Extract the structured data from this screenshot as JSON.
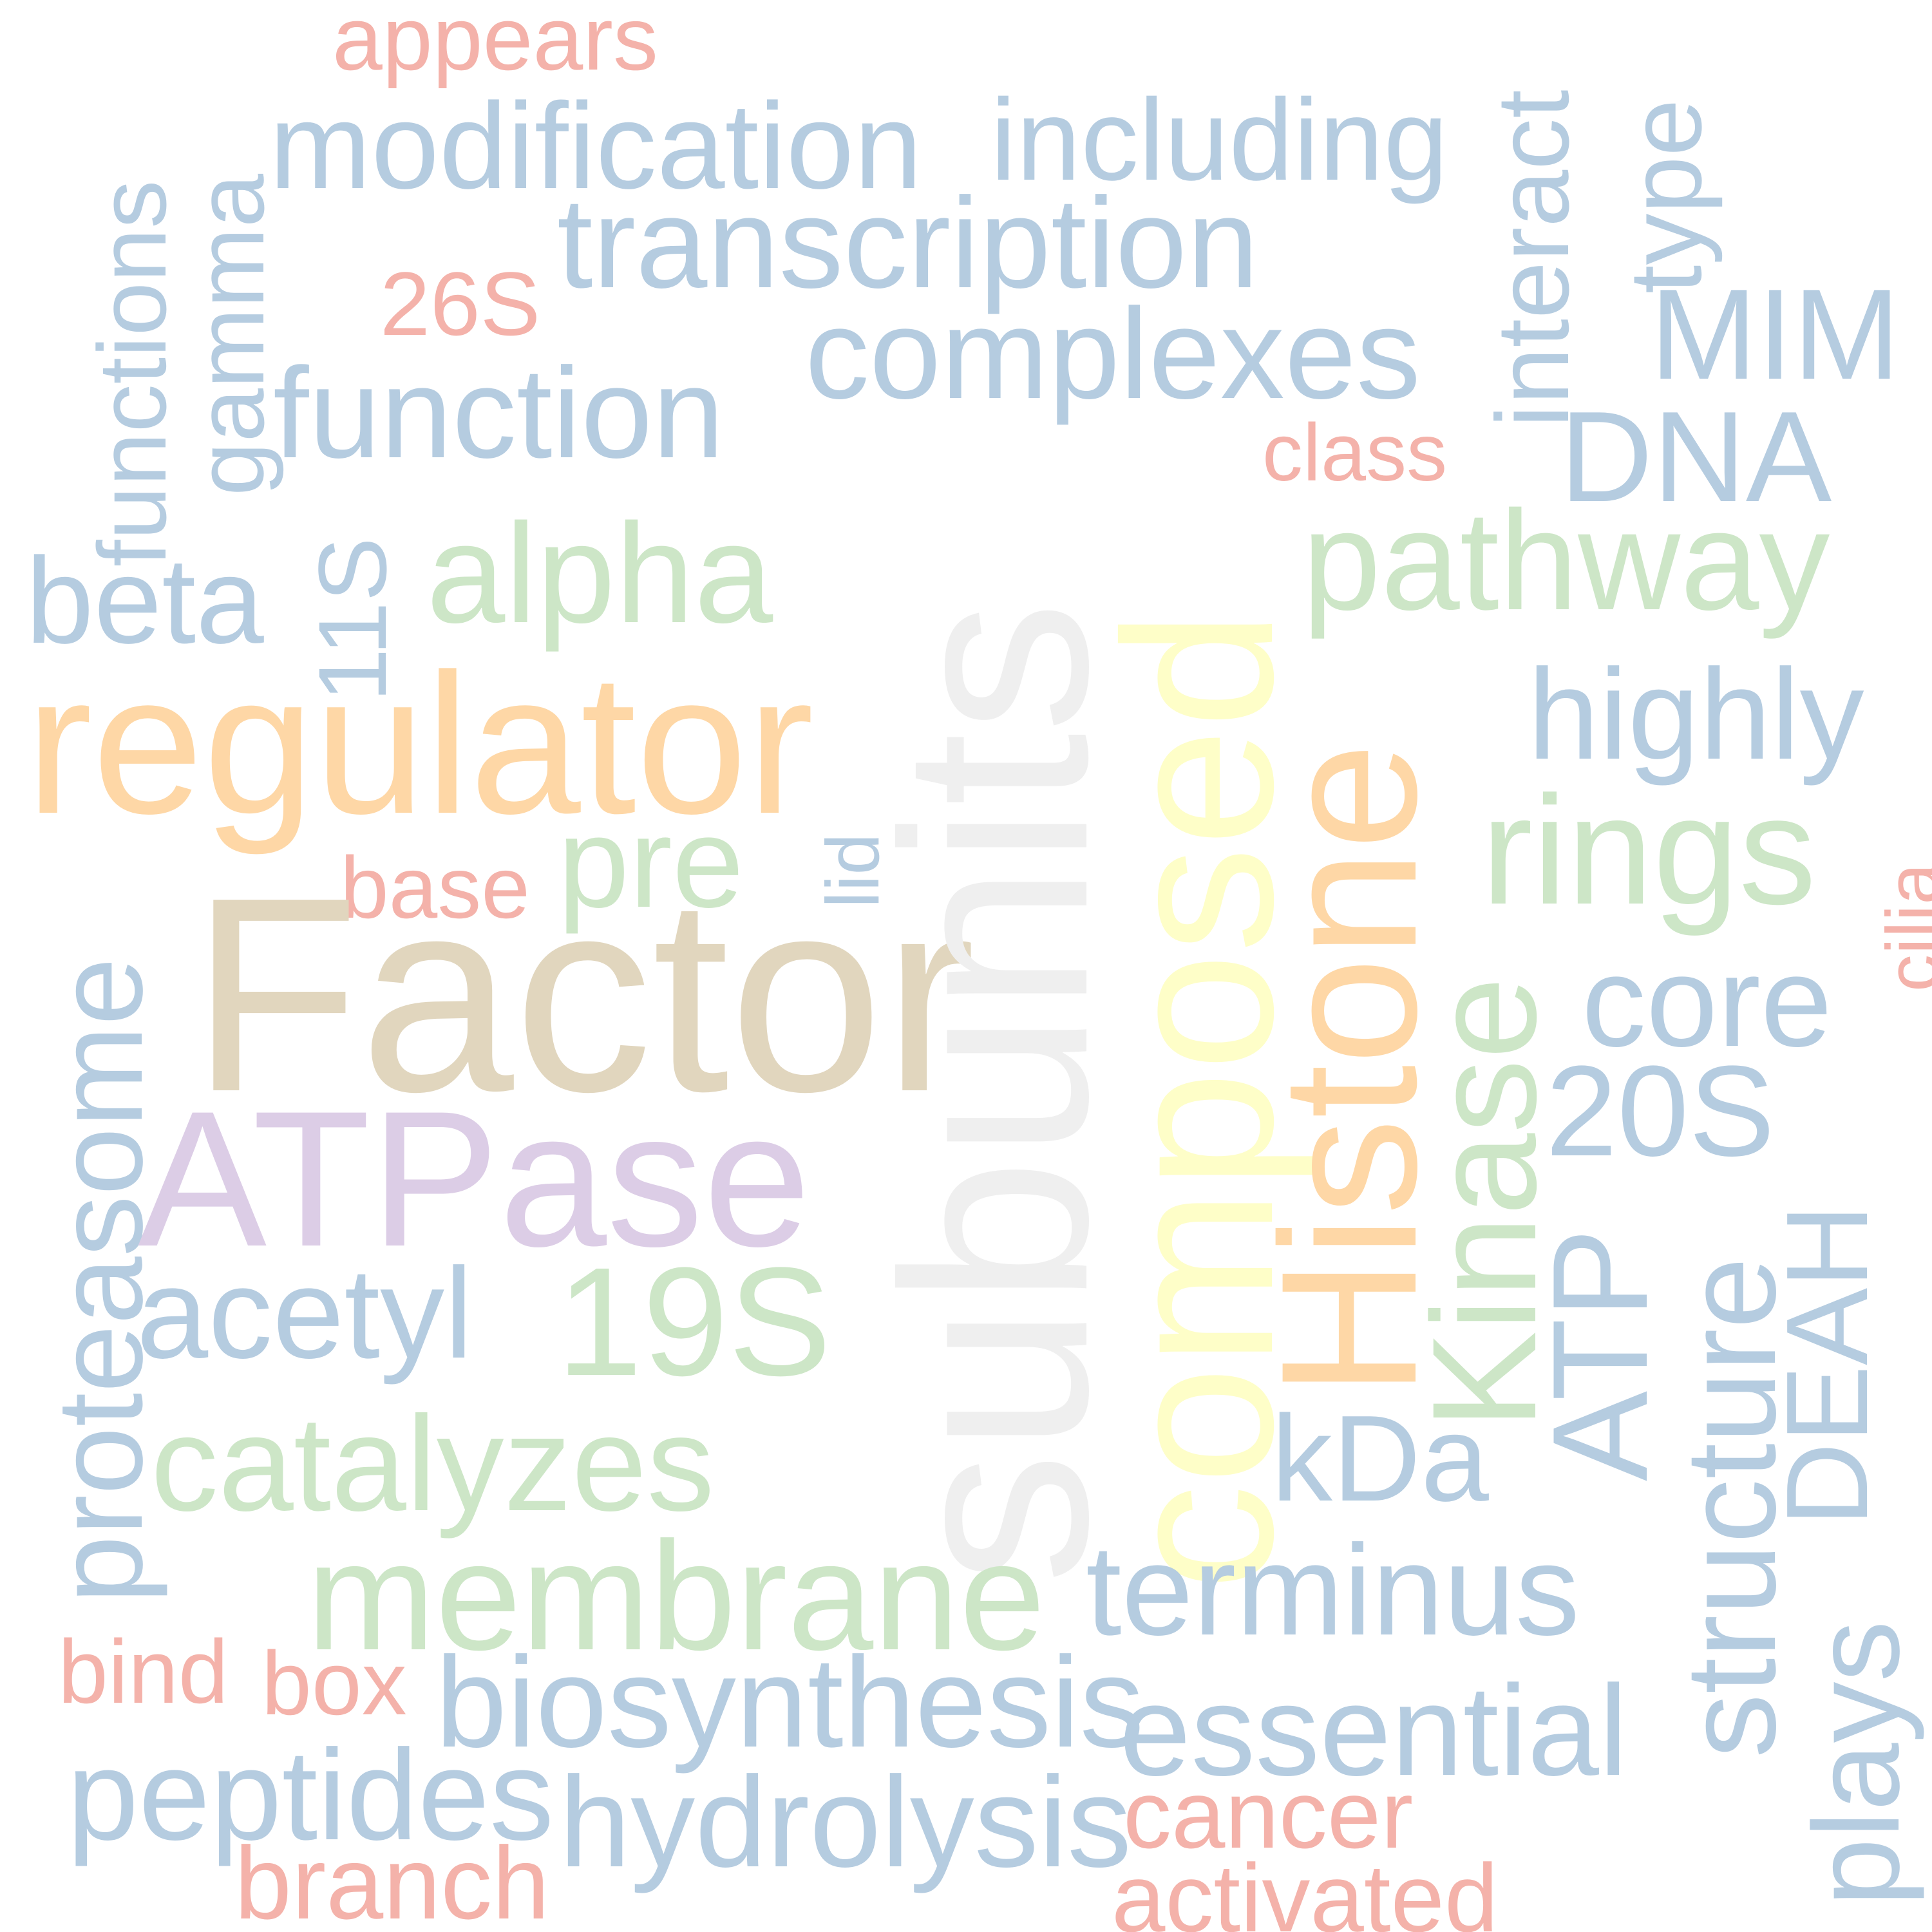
{
  "colors": {
    "blue": "#b5cce0",
    "salmon": "#f4b2aa",
    "green": "#cde6c7",
    "orange": "#fed7a6",
    "tan": "#e1d6be",
    "lavender": "#dccde6",
    "light_gray": "#efefef",
    "light_yellow": "#fefec8"
  },
  "words": {
    "appears": "appears",
    "modification": "modification",
    "including": "including",
    "transcription": "transcription",
    "functions": "functions",
    "gamma": "gamma",
    "26S": "26S",
    "interact": "interact",
    "type": "type",
    "MIM": "MIM",
    "complexes": "complexes",
    "function": "function",
    "class": "class",
    "DNA": "DNA",
    "subunits": "subunits",
    "composed": "composed",
    "11S": "11S",
    "alpha": "alpha",
    "pathway": "pathway",
    "beta": "beta",
    "Histone": "Histone",
    "highly": "highly",
    "regulator": "regulator",
    "rings": "rings",
    "pre": "pre",
    "cilia": "cilia",
    "lid": "lid",
    "base": "base",
    "proteasome": "proteasome",
    "Factor": "Factor",
    "core": "core",
    "Kinase": "Kinase",
    "20S": "20S",
    "ATPase": "ATPase",
    "ATP": "ATP",
    "structure": "structure",
    "DEAH": "DEAH",
    "acetyl": "acetyl",
    "19S": "19S",
    "catalyzes": "catalyzes",
    "kDa": "kDa",
    "membrane": "membrane",
    "terminus": "terminus",
    "plays": "plays",
    "bind": "bind",
    "box": "box",
    "biosynthesis": "biosynthesis",
    "essential": "essential",
    "peptides": "peptides",
    "hydrolysis": "hydrolysis",
    "cancer": "cancer",
    "branch": "branch",
    "activated": "activated"
  }
}
